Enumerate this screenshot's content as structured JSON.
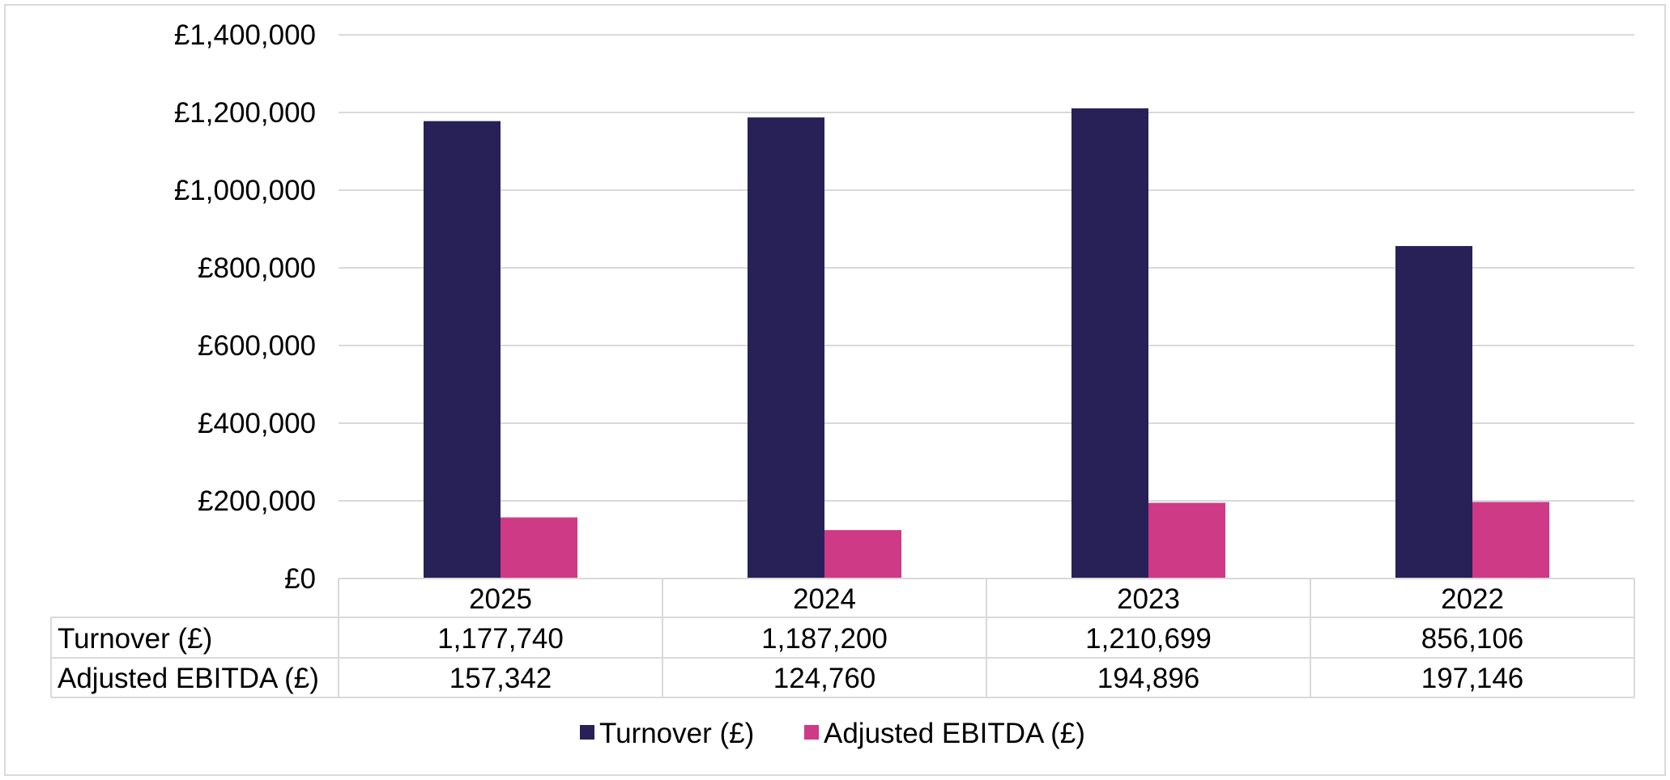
{
  "chart_data": {
    "type": "bar",
    "title": "",
    "xlabel": "",
    "ylabel": "",
    "categories": [
      "2025",
      "2024",
      "2023",
      "2022"
    ],
    "series": [
      {
        "name": "Turnover (£)",
        "color": "#272157",
        "values": [
          1177740,
          1187200,
          1210699,
          856106
        ]
      },
      {
        "name": "Adjusted EBITDA (£)",
        "color": "#CE3A86",
        "values": [
          157342,
          124760,
          194896,
          197146
        ]
      }
    ],
    "table_values": [
      [
        "1,177,740",
        "1,187,200",
        "1,210,699",
        "856,106"
      ],
      [
        "157,342",
        "124,760",
        "194,896",
        "197,146"
      ]
    ],
    "ylim": [
      0,
      1400000
    ],
    "yticks": [
      0,
      200000,
      400000,
      600000,
      800000,
      1000000,
      1200000,
      1400000
    ],
    "ytick_labels": [
      "£0",
      "£200,000",
      "£400,000",
      "£600,000",
      "£800,000",
      "£1,000,000",
      "£1,200,000",
      "£1,400,000"
    ],
    "grid": true,
    "legend_position": "bottom",
    "data_table": true
  }
}
